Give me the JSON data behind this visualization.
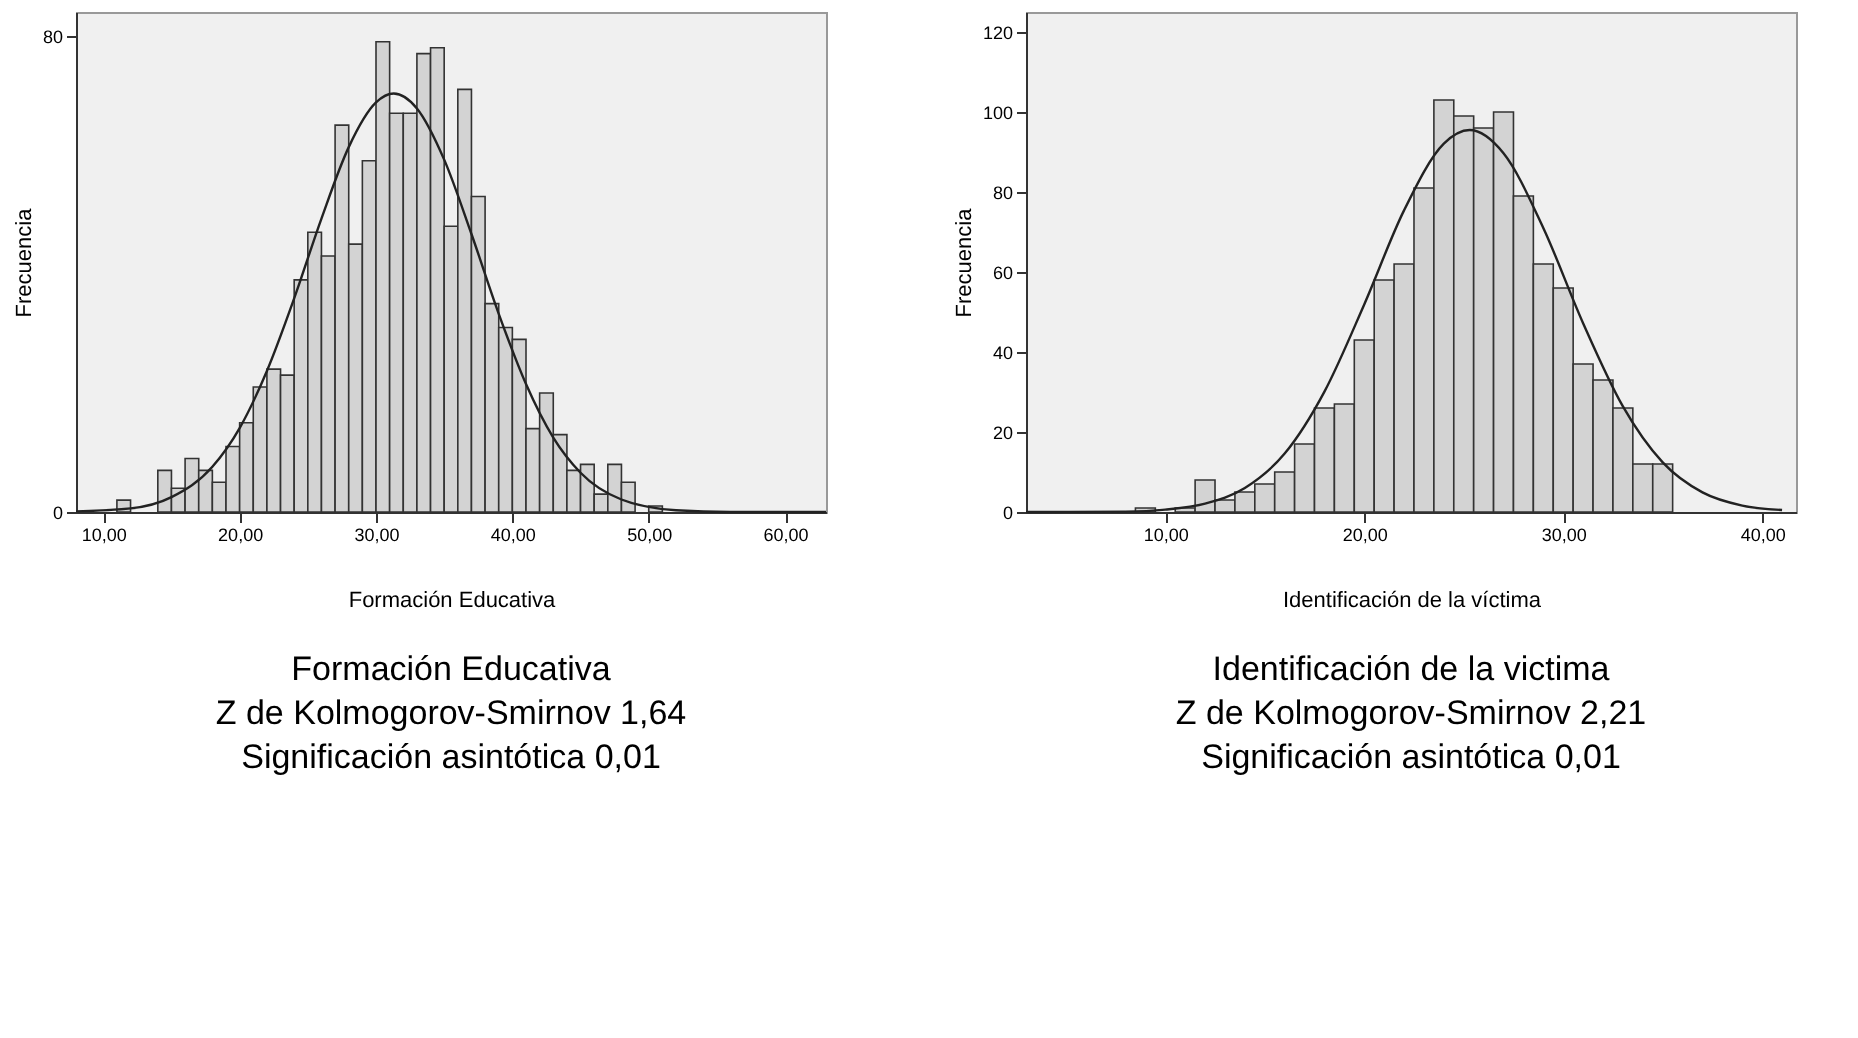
{
  "chart_data": [
    {
      "type": "histogram",
      "xlabel": "Formación Educativa",
      "ylabel": "Frecuencia",
      "xlim": [
        8,
        63
      ],
      "ylim": [
        0,
        84
      ],
      "xticks": [
        {
          "value": 10,
          "label": "10,00"
        },
        {
          "value": 20,
          "label": "20,00"
        },
        {
          "value": 30,
          "label": "30,00"
        },
        {
          "value": 40,
          "label": "40,00"
        },
        {
          "value": 50,
          "label": "50,00"
        },
        {
          "value": 60,
          "label": "60,00"
        }
      ],
      "yticks": [
        0,
        80
      ],
      "grid": false,
      "series": [
        {
          "type": "histogram",
          "color": "#d3d3d3",
          "bins": [
            11,
            12,
            13,
            14,
            15,
            16,
            17,
            18,
            19,
            20,
            21,
            22,
            23,
            24,
            25,
            26,
            27,
            28,
            29,
            30,
            31,
            32,
            33,
            34,
            35,
            36,
            37,
            38,
            39,
            40,
            41,
            42,
            43,
            44,
            45,
            46,
            47,
            48,
            49,
            50,
            51
          ],
          "values": [
            2,
            0,
            0,
            7,
            4,
            9,
            7,
            5,
            11,
            15,
            21,
            24,
            23,
            39,
            47,
            43,
            65,
            45,
            59,
            79,
            67,
            67,
            77,
            78,
            48,
            71,
            53,
            35,
            31,
            29,
            14,
            20,
            13,
            7,
            8,
            3,
            8,
            5,
            0,
            1
          ]
        },
        {
          "type": "line",
          "color": "#222222",
          "marker": "none",
          "line_style": "solid",
          "x": [
            8,
            12,
            15,
            18,
            20,
            22,
            24,
            26,
            28,
            30,
            31.3,
            33,
            35,
            37,
            39,
            41,
            43,
            45,
            48,
            52,
            56,
            60,
            63
          ],
          "values": [
            0.1,
            0.6,
            2.5,
            7.6,
            14.1,
            23.7,
            35.9,
            49.3,
            61.3,
            68.8,
            70.3,
            67.8,
            59.2,
            46.7,
            33.3,
            21.5,
            12.5,
            6.6,
            2.1,
            0.3,
            0,
            0,
            0
          ]
        }
      ],
      "annotations": [
        "Formación Educativa",
        "Z de Kolmogorov-Smirnov      1,64",
        "Significación asintótica  0,01"
      ]
    },
    {
      "type": "histogram",
      "xlabel": "Identificación de la víctima",
      "ylabel": "Frecuencia",
      "xlim": [
        3,
        41.7
      ],
      "ylim": [
        0,
        125
      ],
      "xticks": [
        {
          "value": 10,
          "label": "10,00"
        },
        {
          "value": 20,
          "label": "20,00"
        },
        {
          "value": 30,
          "label": "30,00"
        },
        {
          "value": 40,
          "label": "40,00"
        }
      ],
      "yticks": [
        0,
        20,
        40,
        60,
        80,
        100,
        120
      ],
      "grid": false,
      "series": [
        {
          "type": "histogram",
          "color": "#d3d3d3",
          "bins": [
            8.5,
            9.5,
            10.5,
            11.5,
            12.5,
            13.5,
            14.5,
            15.5,
            16.5,
            17.5,
            18.5,
            19.5,
            20.5,
            21.5,
            22.5,
            23.5,
            24.5,
            25.5,
            26.5,
            27.5,
            28.5,
            29.5,
            30.5,
            31.5,
            32.5,
            33.5,
            34.5,
            35.5
          ],
          "values": [
            1,
            0,
            1,
            8,
            3,
            5,
            7,
            10,
            17,
            26,
            27,
            43,
            58,
            62,
            81,
            103,
            99,
            96,
            100,
            79,
            62,
            56,
            37,
            33,
            26,
            12,
            12
          ]
        },
        {
          "type": "line",
          "color": "#222222",
          "marker": "none",
          "line_style": "solid",
          "x": [
            3,
            8,
            10,
            12,
            14,
            16,
            18,
            20,
            22,
            24,
            25.3,
            27,
            29,
            31,
            33,
            35,
            37,
            39,
            41
          ],
          "values": [
            0,
            0.1,
            0.6,
            2.1,
            6.0,
            14.6,
            30.1,
            51.9,
            75.4,
            92.1,
            95.5,
            89.7,
            71.0,
            47.2,
            26.4,
            12.4,
            4.9,
            1.6,
            0.5
          ]
        }
      ],
      "annotations": [
        "Identificación de la victima",
        "Z de Kolmogorov-Smirnov      2,21",
        "Significación asintótica  0,01"
      ]
    }
  ]
}
